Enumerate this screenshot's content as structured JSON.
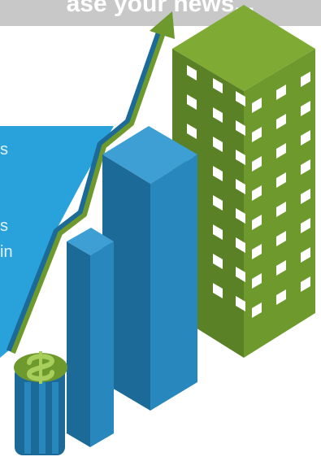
{
  "banner": {
    "title": "ase your news..."
  },
  "panel": {
    "fragments": [
      "s",
      "s",
      "in"
    ]
  },
  "colors": {
    "banner_bg": "#c8c8c8",
    "panel_blue": "#29a2dc",
    "bar_front": "#2887bd",
    "bar_side": "#1b6a98",
    "bar_top": "#3d9fd3",
    "building_front": "#6e9a2d",
    "building_side": "#5a8125",
    "building_top": "#7fab35",
    "window": "#ffffff",
    "arrow_green": "#6e9a2d",
    "arrow_blue": "#1b6a98"
  },
  "icons": {
    "graphic": "growth-arrow-icon",
    "currency": "dollar-sign-icon",
    "building": "office-building-icon"
  }
}
